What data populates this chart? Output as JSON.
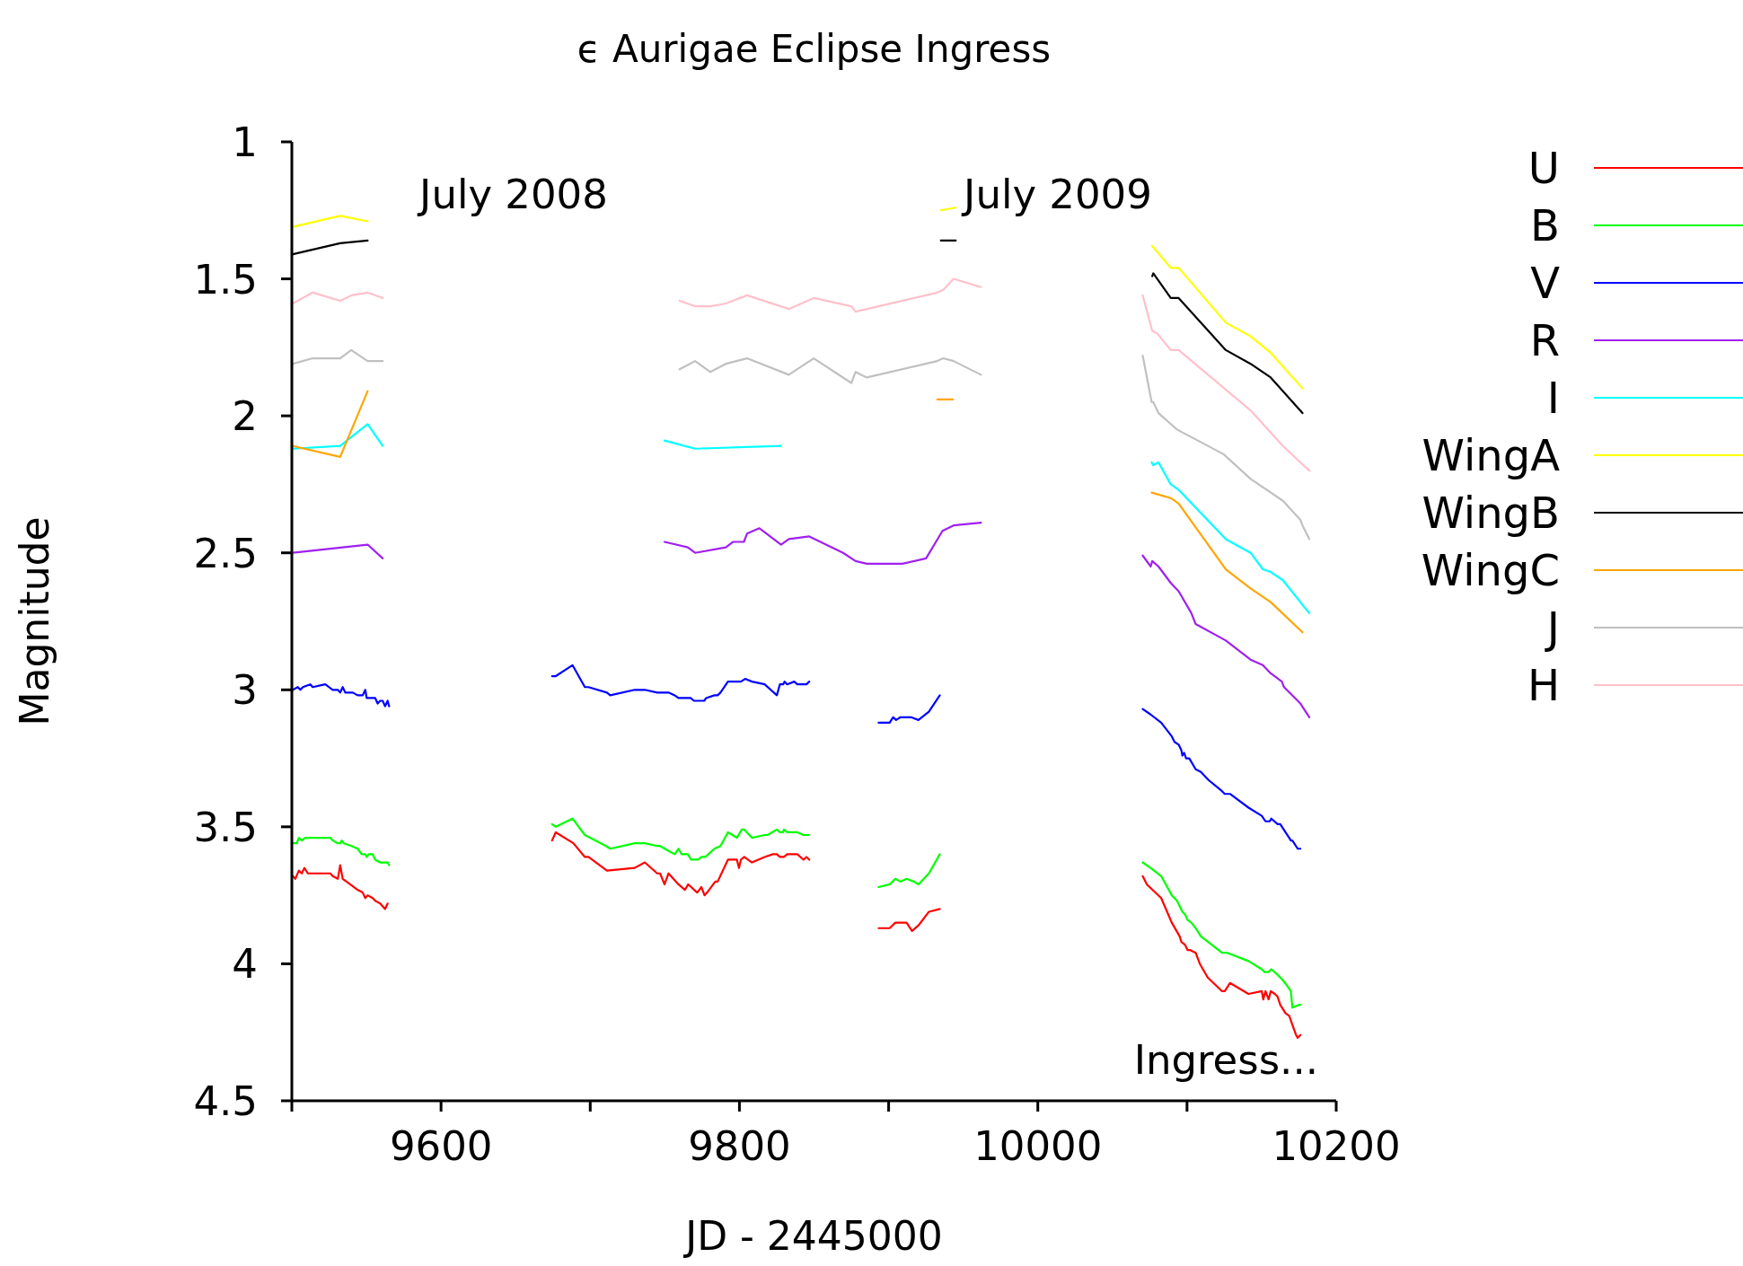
{
  "chart_data": {
    "type": "line",
    "title": "ϵ Aurigae Eclipse Ingress",
    "xlabel": "JD - 2445000",
    "ylabel": "Magnitude",
    "xlim": [
      9500,
      10200
    ],
    "xticks": [
      {
        "value": 9500,
        "label": null
      },
      9600,
      {
        "value": 9700,
        "label": null
      },
      9800,
      {
        "value": 9900,
        "label": null
      },
      10000,
      {
        "value": 10100,
        "label": null
      },
      10200
    ],
    "ylim": [
      4.5,
      1
    ],
    "yticks": [
      1,
      1.5,
      2,
      2.5,
      3,
      3.5,
      4,
      4.5
    ],
    "legend": "top right",
    "annotations": [
      "July 2008",
      "July 2009",
      "Ingress..."
    ],
    "series": [
      {
        "name": "U",
        "color": "#ff0000",
        "x": [
          9500.7,
          9502.3,
          9504.7,
          9506.7,
          9508.4,
          9510.7,
          9525.8,
          9527.4,
          9530.8,
          9532.4,
          9534.1,
          9539.1,
          9544.1,
          9547.5,
          9549.2,
          9550.8,
          9554.2,
          9555.9,
          9559.2,
          9562.5,
          9564.2,
          9620,
          9674.4,
          9676.9,
          9688.7,
          9696.4,
          9698.8,
          9711.2,
          9729.8,
          9736.6,
          9744.9,
          9746.8,
          9749.8,
          9752.5,
          9759.1,
          9763.5,
          9765.7,
          9771.7,
          9774.5,
          9776.6,
          9778.3,
          9783.8,
          9785.4,
          9792.3,
          9798.3,
          9799.7,
          9801.0,
          9803.2,
          9808.4,
          9816.9,
          9822.4,
          9825.1,
          9827.1,
          9829.8,
          9832.0,
          9838.8,
          9843.0,
          9844.9,
          9846.8,
          9870,
          9893.3,
          9900.7,
          9904.5,
          9912,
          9915.7,
          9920,
          9927,
          9934.3,
          10000,
          10070.3,
          10073.1,
          10082.7,
          10089.8,
          10095.1,
          10096.2,
          10098.6,
          10100.4,
          10102.2,
          10105.8,
          10108.6,
          10113.9,
          10123.5,
          10125.3,
          10128.8,
          10141.2,
          10150.1,
          10151.1,
          10152.6,
          10154.7,
          10156.1,
          10158.9,
          10160.7,
          10162.5,
          10166,
          10168.5,
          10173.1,
          10174.2,
          10176
        ],
        "values": [
          3.68,
          3.69,
          3.66,
          3.67,
          3.65,
          3.67,
          3.67,
          3.68,
          3.69,
          3.64,
          3.69,
          3.71,
          3.73,
          3.74,
          3.76,
          3.75,
          3.76,
          3.77,
          3.78,
          3.8,
          3.78,
          null,
          3.55,
          3.52,
          3.56,
          3.61,
          3.61,
          3.66,
          3.65,
          3.63,
          3.67,
          3.67,
          3.71,
          3.67,
          3.71,
          3.73,
          3.71,
          3.74,
          3.72,
          3.75,
          3.74,
          3.7,
          3.7,
          3.62,
          3.62,
          3.65,
          3.62,
          3.61,
          3.63,
          3.61,
          3.6,
          3.6,
          3.61,
          3.61,
          3.6,
          3.6,
          3.62,
          3.61,
          3.62,
          null,
          3.87,
          3.87,
          3.85,
          3.85,
          3.88,
          3.86,
          3.81,
          3.8,
          null,
          3.68,
          3.71,
          3.76,
          3.85,
          3.9,
          3.92,
          3.93,
          3.95,
          3.95,
          3.96,
          4.0,
          4.05,
          4.1,
          4.1,
          4.07,
          4.11,
          4.1,
          4.13,
          4.1,
          4.13,
          4.1,
          4.11,
          4.12,
          4.15,
          4.18,
          4.19,
          4.26,
          4.27,
          4.26
        ]
      },
      {
        "name": "B",
        "color": "#00ff00",
        "x": [
          9500.7,
          9503.3,
          9504.7,
          9506.7,
          9509,
          9525.8,
          9527.4,
          9530.8,
          9532.4,
          9533.4,
          9534.8,
          9540.1,
          9544.1,
          9546.8,
          9549.2,
          9550.2,
          9551.5,
          9554.2,
          9555.9,
          9559.2,
          9560.9,
          9562.5,
          9564.2,
          9565.2,
          9620,
          9674.4,
          9676.9,
          9688.1,
          9696.4,
          9710.6,
          9713.4,
          9729.8,
          9736.6,
          9744.9,
          9746.8,
          9753.1,
          9756.6,
          9759.1,
          9761.3,
          9765.4,
          9767.6,
          9772.3,
          9774.5,
          9777.2,
          9783.2,
          9787.3,
          9792.3,
          9798.3,
          9801.6,
          9803.2,
          9808.4,
          9816.9,
          9818.8,
          9825.1,
          9827.1,
          9829.3,
          9829.8,
          9832,
          9838.8,
          9843,
          9846.8,
          9870,
          9893.3,
          9900.7,
          9904.5,
          9908,
          9912,
          9917,
          9920,
          9927,
          9934.3,
          10000,
          10070.3,
          10075.6,
          10082.7,
          10089.8,
          10093.3,
          10096.9,
          10098.7,
          10100.4,
          10102.9,
          10105.8,
          10109.3,
          10123.5,
          10127,
          10141.2,
          10150.1,
          10151.9,
          10154.7,
          10156.5,
          10160.7,
          10164.3,
          10167.1,
          10169.6,
          10170.6,
          10174.9,
          10176
        ],
        "values": [
          3.56,
          3.56,
          3.54,
          3.55,
          3.54,
          3.54,
          3.55,
          3.56,
          3.56,
          3.55,
          3.56,
          3.57,
          3.58,
          3.6,
          3.6,
          3.61,
          3.6,
          3.6,
          3.62,
          3.63,
          3.63,
          3.63,
          3.63,
          3.64,
          null,
          3.49,
          3.5,
          3.47,
          3.53,
          3.57,
          3.58,
          3.56,
          3.56,
          3.57,
          3.57,
          3.59,
          3.6,
          3.58,
          3.6,
          3.6,
          3.62,
          3.62,
          3.61,
          3.61,
          3.58,
          3.57,
          3.52,
          3.54,
          3.51,
          3.51,
          3.54,
          3.53,
          3.53,
          3.51,
          3.52,
          3.52,
          3.51,
          3.52,
          3.52,
          3.53,
          3.53,
          null,
          3.72,
          3.71,
          3.69,
          3.7,
          3.69,
          3.7,
          3.71,
          3.67,
          3.6,
          null,
          3.63,
          3.65,
          3.68,
          3.75,
          3.77,
          3.81,
          3.82,
          3.84,
          3.85,
          3.87,
          3.9,
          3.96,
          3.96,
          3.99,
          4.02,
          4.03,
          4.03,
          4.02,
          4.04,
          4.06,
          4.08,
          4.1,
          4.16,
          4.15,
          4.15
        ]
      },
      {
        "name": "V",
        "color": "#0000ff",
        "x": [
          9500.7,
          9504,
          9505.7,
          9507.4,
          9512.4,
          9514,
          9522.4,
          9527.4,
          9530.8,
          9532.4,
          9534.1,
          9535.8,
          9540.8,
          9544.1,
          9547.5,
          9549.2,
          9550.2,
          9555.9,
          9557.5,
          9559.2,
          9560.9,
          9562.5,
          9564.2,
          9565.2,
          9620,
          9674.4,
          9675.8,
          9676.9,
          9688.1,
          9696.4,
          9698.8,
          9711.2,
          9713.4,
          9729.8,
          9736.6,
          9744.9,
          9752.5,
          9756.6,
          9759.1,
          9767.3,
          9769.5,
          9776.4,
          9777.7,
          9783.2,
          9785.4,
          9787.3,
          9792.3,
          9801,
          9803.8,
          9808.4,
          9816.9,
          9825.1,
          9827.1,
          9829.3,
          9830.3,
          9832,
          9836.7,
          9838.8,
          9844.9,
          9846.8,
          9870,
          9893.3,
          9900.7,
          9903,
          9905,
          9908,
          9915,
          9920,
          9927,
          9934.3,
          10000,
          10070.3,
          10075.6,
          10082.7,
          10089.8,
          10091.6,
          10094.4,
          10096.2,
          10096.9,
          10098,
          10099.4,
          10101.5,
          10105.8,
          10109.3,
          10114.6,
          10123.5,
          10125.3,
          10128.8,
          10141.2,
          10150.1,
          10152.6,
          10155.4,
          10156.5,
          10160.7,
          10162.5,
          10166,
          10168.5,
          10169.6,
          10170.6,
          10174.2,
          10176
        ],
        "values": [
          3.0,
          2.99,
          3.0,
          2.99,
          2.98,
          2.99,
          2.98,
          3.0,
          3.0,
          3.01,
          2.99,
          3.01,
          3.01,
          3.02,
          3.02,
          3.0,
          3.03,
          3.03,
          3.05,
          3.04,
          3.04,
          3.06,
          3.04,
          3.06,
          null,
          2.95,
          2.95,
          2.95,
          2.91,
          2.99,
          2.99,
          3.01,
          3.02,
          3.0,
          3.0,
          3.01,
          3.01,
          3.02,
          3.03,
          3.03,
          3.04,
          3.04,
          3.03,
          3.02,
          3.02,
          3.01,
          2.97,
          2.97,
          2.96,
          2.97,
          2.98,
          3.02,
          2.98,
          2.98,
          2.97,
          2.98,
          2.97,
          2.98,
          2.98,
          2.97,
          null,
          3.12,
          3.12,
          3.1,
          3.11,
          3.1,
          3.1,
          3.11,
          3.08,
          3.02,
          null,
          3.07,
          3.09,
          3.12,
          3.17,
          3.19,
          3.2,
          3.22,
          3.24,
          3.23,
          3.25,
          3.25,
          3.29,
          3.3,
          3.33,
          3.37,
          3.38,
          3.38,
          3.43,
          3.46,
          3.48,
          3.48,
          3.47,
          3.49,
          3.49,
          3.52,
          3.54,
          3.55,
          3.55,
          3.58,
          3.58
        ]
      },
      {
        "name": "R",
        "color": "#a020f0",
        "x": [
          9500.7,
          9550.8,
          9560.9,
          9650,
          9749.8,
          9765.4,
          9770.3,
          9790.9,
          9795.6,
          9803,
          9805.1,
          9813.4,
          9827.9,
          9833.1,
          9846.8,
          9869.5,
          9877.8,
          9885.4,
          9909.3,
          9925.1,
          9936.1,
          9943.5,
          9961.9,
          10010,
          10070.3,
          10075.6,
          10076.7,
          10080.9,
          10089.1,
          10094.4,
          10102.9,
          10105.8,
          10126,
          10142.6,
          10150.8,
          10156.1,
          10163.6,
          10165,
          10176,
          10182
        ],
        "values": [
          2.5,
          2.47,
          2.52,
          null,
          2.46,
          2.48,
          2.5,
          2.48,
          2.46,
          2.46,
          2.43,
          2.41,
          2.47,
          2.45,
          2.44,
          2.5,
          2.53,
          2.54,
          2.54,
          2.52,
          2.42,
          2.4,
          2.39,
          null,
          2.51,
          2.55,
          2.53,
          2.55,
          2.61,
          2.64,
          2.72,
          2.76,
          2.82,
          2.89,
          2.91,
          2.94,
          2.97,
          2.99,
          3.05,
          3.1
        ]
      },
      {
        "name": "I",
        "color": "#00ffff",
        "x": [
          9500.7,
          9532.4,
          9550.8,
          9560.9,
          9650,
          9749.8,
          9770.3,
          9827.9,
          10000,
          10076.3,
          10077.4,
          10080.9,
          10089.1,
          10094.4,
          10126,
          10142.6,
          10150.8,
          10156.1,
          10164.3,
          10177.4,
          10182
        ],
        "values": [
          2.12,
          2.11,
          2.03,
          2.11,
          null,
          2.09,
          2.12,
          2.11,
          null,
          2.17,
          2.18,
          2.17,
          2.25,
          2.27,
          2.45,
          2.5,
          2.56,
          2.57,
          2.6,
          2.69,
          2.72
        ]
      },
      {
        "name": "WingA",
        "color": "#ffff00",
        "x": [
          9500.7,
          9532.4,
          9550.8,
          9700,
          9935,
          9945,
          10010,
          10076.7,
          10089.1,
          10094.4,
          10126,
          10142.6,
          10156.1,
          10177.4
        ],
        "values": [
          1.31,
          1.27,
          1.29,
          null,
          1.25,
          1.24,
          null,
          1.38,
          1.46,
          1.46,
          1.66,
          1.71,
          1.77,
          1.9
        ]
      },
      {
        "name": "WingB",
        "color": "#000000",
        "x": [
          9500.7,
          9532.4,
          9550.8,
          9700,
          9935,
          9945,
          10010,
          10076.7,
          10077.4,
          10089.1,
          10094.4,
          10126,
          10142.6,
          10156.1,
          10177.4
        ],
        "values": [
          1.41,
          1.37,
          1.36,
          null,
          1.36,
          1.36,
          null,
          1.49,
          1.48,
          1.57,
          1.57,
          1.76,
          1.81,
          1.86,
          1.99
        ]
      },
      {
        "name": "WingC",
        "color": "#ffa500",
        "x": [
          9500.7,
          9532.4,
          9550.8,
          9700,
          9932.6,
          9943,
          10010,
          10076.3,
          10089.1,
          10094.4,
          10126,
          10142.6,
          10156.1,
          10177.4
        ],
        "values": [
          2.11,
          2.15,
          1.91,
          null,
          1.94,
          1.94,
          null,
          2.28,
          2.3,
          2.32,
          2.56,
          2.63,
          2.68,
          2.79
        ]
      },
      {
        "name": "J",
        "color": "#c0c0c0",
        "x": [
          9500.7,
          9514,
          9532.4,
          9539.8,
          9550.8,
          9560.9,
          9650,
          9759.9,
          9770.3,
          9780.5,
          9790.9,
          9805.1,
          9833.1,
          9849.8,
          9875,
          9877.8,
          9885.4,
          9932.6,
          9936.7,
          9943.5,
          9961.9,
          10010,
          10070.3,
          10076.3,
          10077.4,
          10080.9,
          10089.1,
          10093.3,
          10124.5,
          10142.6,
          10164.3,
          10176,
          10177.4,
          10182
        ],
        "values": [
          1.81,
          1.79,
          1.79,
          1.76,
          1.8,
          1.8,
          null,
          1.83,
          1.8,
          1.84,
          1.81,
          1.79,
          1.85,
          1.79,
          1.88,
          1.84,
          1.86,
          1.8,
          1.79,
          1.8,
          1.85,
          null,
          1.78,
          1.95,
          1.95,
          1.99,
          2.03,
          2.05,
          2.14,
          2.23,
          2.31,
          2.38,
          2.4,
          2.45
        ]
      },
      {
        "name": "H",
        "color": "#ffc0cb",
        "x": [
          9500.7,
          9514,
          9532.4,
          9540.1,
          9550.8,
          9560.9,
          9650,
          9759.9,
          9770.3,
          9780.5,
          9790.9,
          9805.1,
          9833.1,
          9849.8,
          9875,
          9877.8,
          9932.6,
          9936.7,
          9943.5,
          9961.9,
          10010,
          10070.3,
          10076.7,
          10080.2,
          10089.1,
          10094.4,
          10142.6,
          10164.3,
          10176,
          10182
        ],
        "values": [
          1.59,
          1.55,
          1.58,
          1.56,
          1.55,
          1.57,
          null,
          1.58,
          1.6,
          1.6,
          1.59,
          1.56,
          1.61,
          1.57,
          1.6,
          1.62,
          1.55,
          1.54,
          1.5,
          1.53,
          null,
          1.56,
          1.69,
          1.7,
          1.76,
          1.76,
          1.98,
          2.11,
          2.17,
          2.2
        ]
      }
    ]
  }
}
